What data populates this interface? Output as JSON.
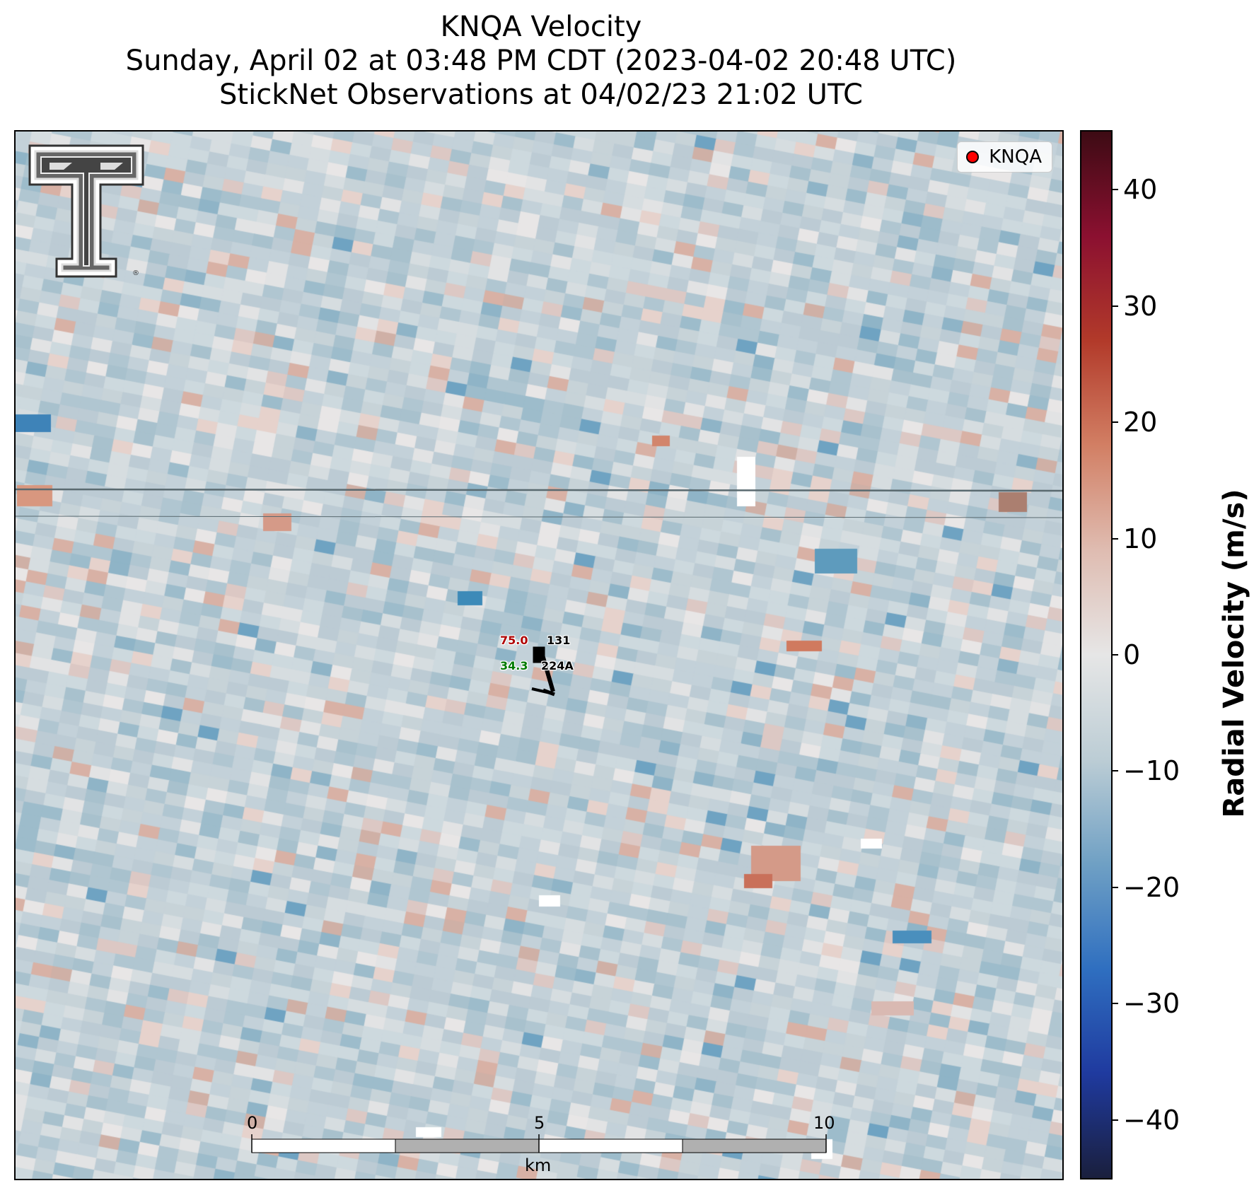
{
  "title": {
    "line1": "KNQA Velocity",
    "line2": "Sunday, April 02 at 03:48 PM CDT (2023-04-02 20:48 UTC)",
    "line3": "StickNet Observations at 04/02/23 21:02 UTC"
  },
  "legend": {
    "label": "KNQA",
    "marker_color": "#ff0000"
  },
  "logo": {
    "icon": "texas-tech-double-t-logo"
  },
  "station": {
    "temperature": "75.0",
    "dewpoint": "34.3",
    "id_top": "131",
    "id_bottom": "224A",
    "temperature_color": "#b00000",
    "dewpoint_color": "#007a00"
  },
  "scalebar": {
    "ticks": [
      "0",
      "5",
      "10"
    ],
    "unit": "km"
  },
  "colorbar": {
    "label": "Radial Velocity (m/s)",
    "vmin": -45,
    "vmax": 45,
    "ticks": [
      "40",
      "30",
      "20",
      "10",
      "0",
      "−10",
      "−20",
      "−30",
      "−40"
    ],
    "tick_values": [
      40,
      30,
      20,
      10,
      0,
      -10,
      -20,
      -30,
      -40
    ],
    "colormap_stops": [
      "#1a1f3d",
      "#1f3a9f",
      "#2f6fc0",
      "#6fa0c4",
      "#bccdd5",
      "#e6e6e6",
      "#dfbcb1",
      "#d27f64",
      "#b23a2a",
      "#8b1030",
      "#3d0b14"
    ]
  }
}
